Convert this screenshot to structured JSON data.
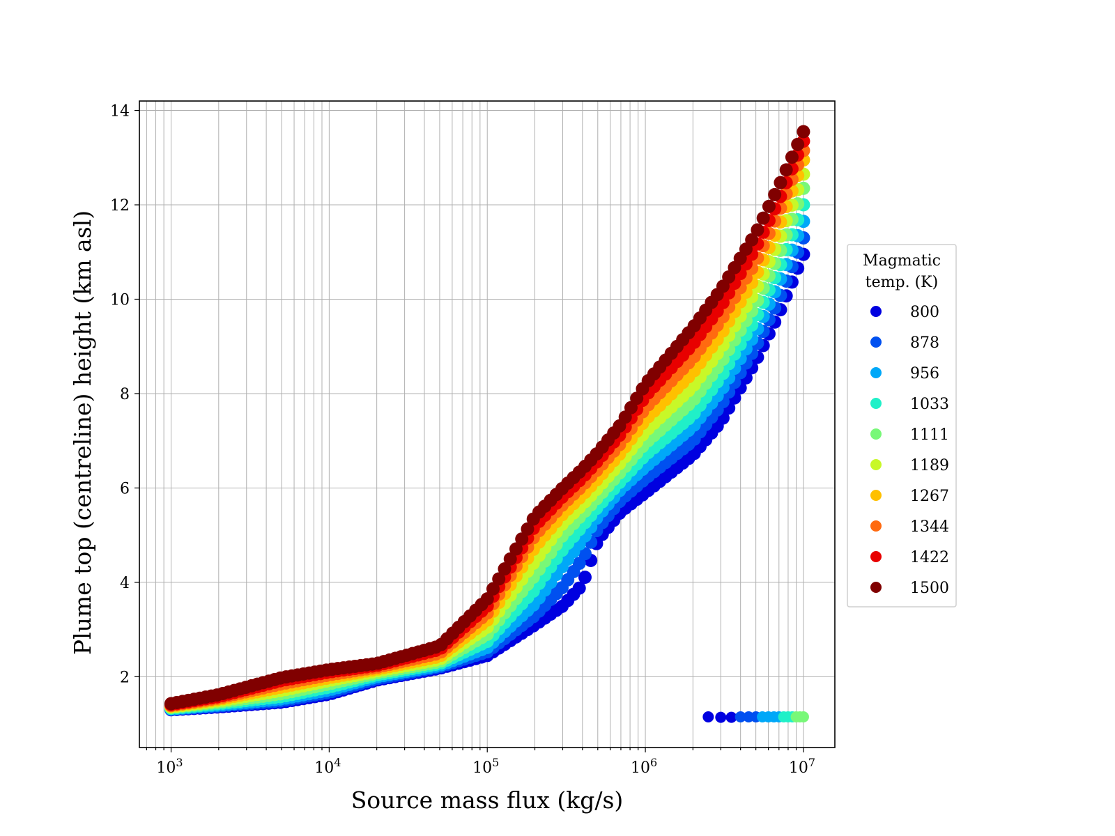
{
  "chart_data": {
    "type": "scatter",
    "xlabel": "Source mass flux (kg/s)",
    "ylabel": "Plume top (centreline) height (km asl)",
    "xscale": "log",
    "xlim": [
      630,
      15800000
    ],
    "ylim": [
      0.5,
      14.2
    ],
    "x_ticks": [
      1000,
      10000,
      100000,
      1000000,
      10000000
    ],
    "x_tick_labels": [
      "10",
      "10",
      "10",
      "10",
      "10"
    ],
    "x_tick_exponents": [
      "3",
      "4",
      "5",
      "6",
      "7"
    ],
    "y_ticks": [
      2,
      4,
      6,
      8,
      10,
      12,
      14
    ],
    "y_tick_labels": [
      "2",
      "4",
      "6",
      "8",
      "10",
      "12",
      "14"
    ],
    "grid": true,
    "legend": {
      "title_lines": [
        "Magmatic",
        "temp. (K)"
      ],
      "placement": "outside right"
    },
    "series": [
      {
        "name": "800",
        "color": "#0000e0",
        "x": [
          1000,
          2000,
          5000,
          10000,
          20000,
          50000,
          100000,
          200000,
          300000,
          400000,
          500000,
          700000,
          1000000,
          2000000,
          3000000,
          5000000,
          7000000,
          10000000
        ],
        "y": [
          1.3,
          1.36,
          1.46,
          1.63,
          1.93,
          2.18,
          2.45,
          3.1,
          3.5,
          3.95,
          4.9,
          5.5,
          5.9,
          6.7,
          7.4,
          8.7,
          9.7,
          10.95
        ]
      },
      {
        "name": "878",
        "color": "#0050f0",
        "x": [
          1000,
          2000,
          5000,
          10000,
          20000,
          50000,
          100000,
          200000,
          300000,
          400000,
          500000,
          700000,
          1000000,
          2000000,
          3000000,
          5000000,
          7000000,
          10000000
        ],
        "y": [
          1.31,
          1.38,
          1.49,
          1.67,
          1.96,
          2.21,
          2.53,
          3.3,
          3.9,
          4.5,
          5.15,
          5.75,
          6.2,
          7.0,
          7.75,
          9.0,
          10.0,
          11.3
        ]
      },
      {
        "name": "956",
        "color": "#00a8f8",
        "x": [
          1000,
          2000,
          5000,
          10000,
          20000,
          50000,
          100000,
          200000,
          300000,
          400000,
          500000,
          700000,
          1000000,
          2000000,
          3000000,
          5000000,
          7000000,
          10000000
        ],
        "y": [
          1.32,
          1.4,
          1.53,
          1.72,
          2.0,
          2.24,
          2.62,
          3.55,
          4.35,
          4.9,
          5.4,
          5.98,
          6.45,
          7.3,
          8.05,
          9.3,
          10.35,
          11.65
        ]
      },
      {
        "name": "1033",
        "color": "#20f0c8",
        "x": [
          1000,
          2000,
          5000,
          10000,
          20000,
          50000,
          100000,
          200000,
          300000,
          400000,
          500000,
          700000,
          1000000,
          2000000,
          3000000,
          5000000,
          7000000,
          10000000
        ],
        "y": [
          1.33,
          1.43,
          1.58,
          1.78,
          2.04,
          2.28,
          2.75,
          3.85,
          4.7,
          5.2,
          5.6,
          6.15,
          6.7,
          7.55,
          8.35,
          9.6,
          10.65,
          12.0
        ]
      },
      {
        "name": "1111",
        "color": "#78f878",
        "x": [
          1000,
          2000,
          5000,
          10000,
          20000,
          50000,
          100000,
          200000,
          300000,
          400000,
          500000,
          700000,
          1000000,
          2000000,
          3000000,
          5000000,
          7000000,
          10000000
        ],
        "y": [
          1.35,
          1.46,
          1.64,
          1.85,
          2.08,
          2.32,
          2.9,
          4.15,
          5.0,
          5.45,
          5.8,
          6.35,
          6.95,
          7.85,
          8.65,
          9.9,
          10.95,
          12.35
        ]
      },
      {
        "name": "1189",
        "color": "#c8f828",
        "x": [
          1000,
          2000,
          5000,
          10000,
          20000,
          50000,
          100000,
          200000,
          300000,
          400000,
          500000,
          700000,
          1000000,
          2000000,
          3000000,
          5000000,
          7000000,
          10000000
        ],
        "y": [
          1.36,
          1.49,
          1.71,
          1.92,
          2.12,
          2.37,
          3.05,
          4.45,
          5.25,
          5.65,
          6.0,
          6.55,
          7.2,
          8.15,
          8.95,
          10.2,
          11.25,
          12.65
        ]
      },
      {
        "name": "1267",
        "color": "#ffc000",
        "x": [
          1000,
          2000,
          5000,
          10000,
          20000,
          50000,
          100000,
          200000,
          300000,
          400000,
          500000,
          700000,
          1000000,
          2000000,
          3000000,
          5000000,
          7000000,
          10000000
        ],
        "y": [
          1.38,
          1.52,
          1.78,
          1.98,
          2.16,
          2.43,
          3.2,
          4.75,
          5.45,
          5.85,
          6.2,
          6.75,
          7.45,
          8.45,
          9.25,
          10.5,
          11.55,
          12.95
        ]
      },
      {
        "name": "1344",
        "color": "#ff6a10",
        "x": [
          1000,
          2000,
          5000,
          10000,
          20000,
          50000,
          100000,
          200000,
          300000,
          400000,
          500000,
          700000,
          1000000,
          2000000,
          3000000,
          5000000,
          7000000,
          10000000
        ],
        "y": [
          1.39,
          1.55,
          1.85,
          2.04,
          2.2,
          2.5,
          3.35,
          5.0,
          5.65,
          6.05,
          6.4,
          6.95,
          7.7,
          8.75,
          9.55,
          10.8,
          11.85,
          13.15
        ]
      },
      {
        "name": "1422",
        "color": "#e80000",
        "x": [
          1000,
          2000,
          5000,
          10000,
          20000,
          50000,
          100000,
          200000,
          300000,
          400000,
          500000,
          700000,
          1000000,
          2000000,
          3000000,
          5000000,
          7000000,
          10000000
        ],
        "y": [
          1.41,
          1.58,
          1.92,
          2.1,
          2.24,
          2.58,
          3.5,
          5.2,
          5.82,
          6.22,
          6.58,
          7.15,
          7.95,
          9.05,
          9.85,
          11.1,
          12.1,
          13.35
        ]
      },
      {
        "name": "1500",
        "color": "#800000",
        "x": [
          1000,
          2000,
          5000,
          10000,
          20000,
          50000,
          100000,
          200000,
          300000,
          400000,
          500000,
          700000,
          1000000,
          2000000,
          3000000,
          5000000,
          7000000,
          10000000
        ],
        "y": [
          1.43,
          1.62,
          1.98,
          2.15,
          2.28,
          2.65,
          3.65,
          5.4,
          6.0,
          6.4,
          6.75,
          7.35,
          8.2,
          9.4,
          10.2,
          11.4,
          12.4,
          13.55
        ]
      }
    ],
    "outlier_cluster": {
      "x": [
        2500000,
        3000000,
        3500000,
        4000000,
        4500000,
        5000000,
        5500000,
        6000000,
        6500000,
        7000000,
        7500000,
        8000000,
        8500000,
        9000000,
        9500000,
        10000000
      ],
      "y": [
        1.15,
        1.14,
        1.14,
        1.15,
        1.15,
        1.15,
        1.15,
        1.15,
        1.15,
        1.15,
        1.15,
        1.15,
        1.15,
        1.15,
        1.15,
        1.15
      ],
      "colors": [
        "#0000e0",
        "#0000e0",
        "#0000e0",
        "#0050f0",
        "#0050f0",
        "#0050f0",
        "#00a8f8",
        "#00a8f8",
        "#00a8f8",
        "#00a8f8",
        "#20f0c8",
        "#20f0c8",
        "#20f0c8",
        "#78f878",
        "#78f878",
        "#78f878"
      ]
    }
  }
}
